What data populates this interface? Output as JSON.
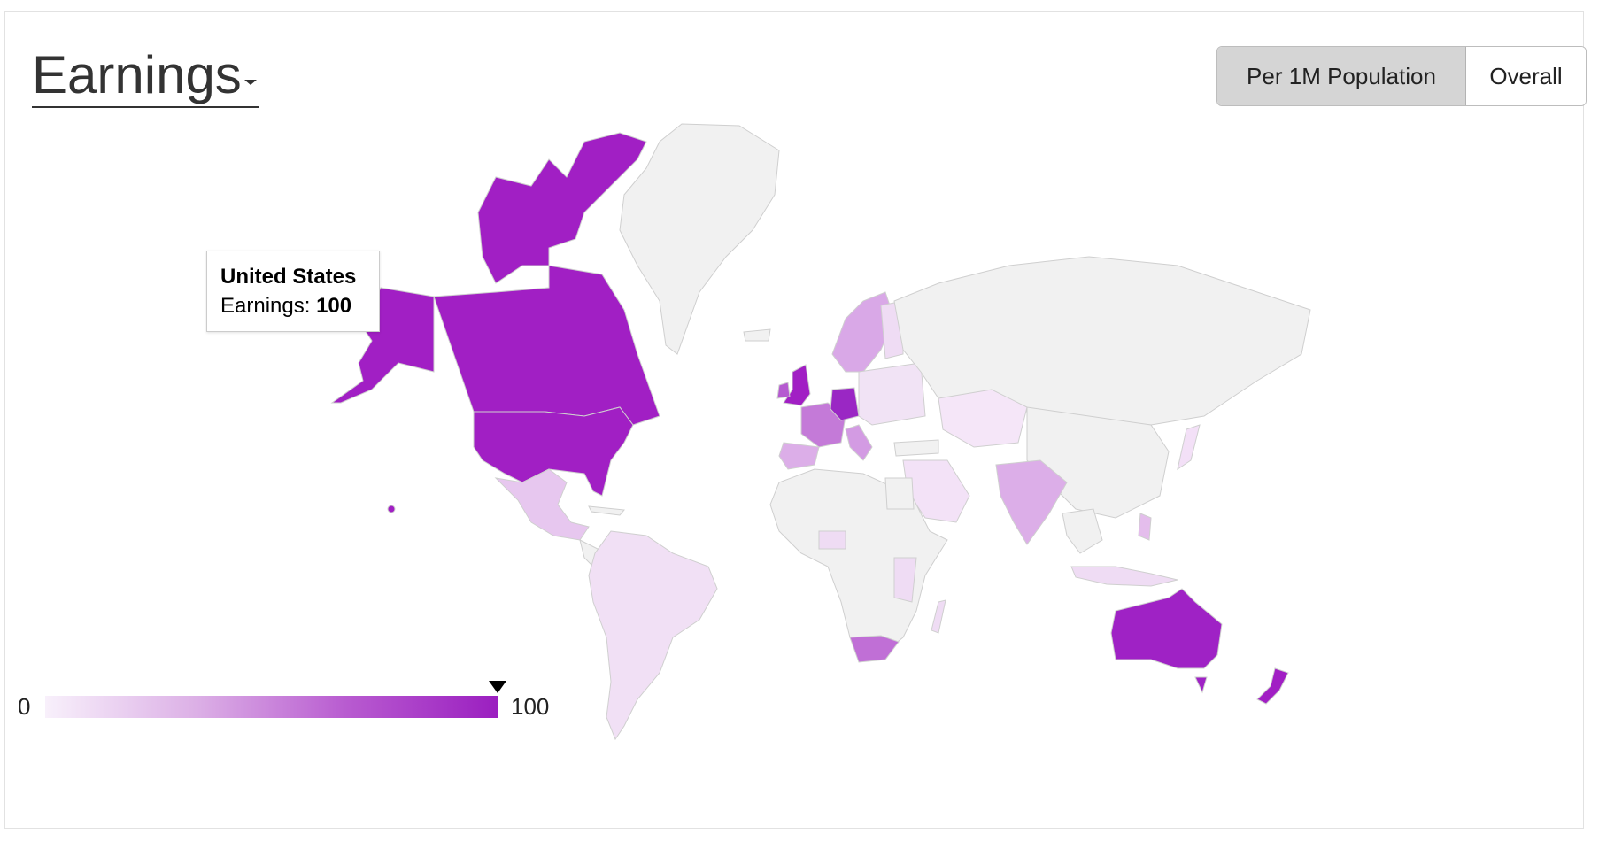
{
  "header": {
    "metric_label": "Earnings",
    "toggle": {
      "active_label": "Per 1M Population",
      "inactive_label": "Overall"
    }
  },
  "tooltip": {
    "country": "United States",
    "metric_label": "Earnings:",
    "value": "100"
  },
  "legend": {
    "min_label": "0",
    "max_label": "100",
    "marker_value": 100
  },
  "colors": {
    "scale_min": "#f8f0fb",
    "scale_max": "#9b1fc0",
    "no_data": "#f1f1f1",
    "border": "#cfcfcf"
  },
  "map_data": [
    {
      "region": "United States",
      "value": 100
    },
    {
      "region": "Canada",
      "value": 100
    },
    {
      "region": "Australia",
      "value": 90
    },
    {
      "region": "New Zealand",
      "value": 90
    },
    {
      "region": "United Kingdom",
      "value": 85
    },
    {
      "region": "Germany",
      "value": 80
    },
    {
      "region": "France",
      "value": 55
    },
    {
      "region": "South Africa",
      "value": 50
    },
    {
      "region": "Scandinavia",
      "value": 35
    },
    {
      "region": "India",
      "value": 25
    },
    {
      "region": "Mexico",
      "value": 15
    },
    {
      "region": "South America",
      "value": 10
    },
    {
      "region": "Middle East",
      "value": 10
    },
    {
      "region": "Central Asia",
      "value": 8
    },
    {
      "region": "Southeast Asia",
      "value": 12
    }
  ]
}
